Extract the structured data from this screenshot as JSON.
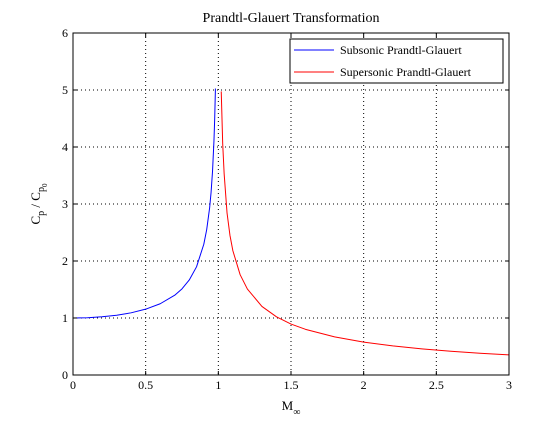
{
  "chart_data": {
    "type": "line",
    "title": "Prandtl-Glauert Transformation",
    "xlabel": {
      "base": "M",
      "sub": "∞"
    },
    "ylabel": {
      "c1": "C",
      "c1_sub": "p",
      "slash": " / C",
      "c2_sub": "p",
      "c2_subsub": "0"
    },
    "xlim": [
      0,
      3
    ],
    "ylim": [
      0,
      6
    ],
    "xticks": [
      0,
      0.5,
      1,
      1.5,
      2,
      2.5,
      3
    ],
    "xtick_labels": [
      "0",
      "0.5",
      "1",
      "1.5",
      "2",
      "2.5",
      "3"
    ],
    "yticks": [
      0,
      1,
      2,
      3,
      4,
      5,
      6
    ],
    "ytick_labels": [
      "0",
      "1",
      "2",
      "3",
      "4",
      "5",
      "6"
    ],
    "grid": true,
    "legend_position": "top-right",
    "series": [
      {
        "name": "Subsonic Prandtl-Glauert",
        "color": "#0000ff",
        "x": [
          0,
          0.1,
          0.2,
          0.3,
          0.4,
          0.5,
          0.6,
          0.7,
          0.75,
          0.8,
          0.85,
          0.9,
          0.92,
          0.94,
          0.95,
          0.96,
          0.97,
          0.975,
          0.98
        ],
        "y": [
          1.0,
          1.005,
          1.021,
          1.048,
          1.091,
          1.155,
          1.25,
          1.4,
          1.512,
          1.667,
          1.898,
          2.294,
          2.552,
          2.931,
          3.203,
          3.571,
          4.113,
          4.5,
          5.025
        ]
      },
      {
        "name": "Supersonic Prandtl-Glauert",
        "color": "#ff0000",
        "x": [
          1.02,
          1.03,
          1.04,
          1.06,
          1.08,
          1.1,
          1.15,
          1.2,
          1.3,
          1.4,
          1.5,
          1.6,
          1.8,
          2.0,
          2.2,
          2.4,
          2.6,
          2.8,
          3.0
        ],
        "y": [
          4.975,
          4.06,
          3.53,
          2.84,
          2.45,
          2.18,
          1.76,
          1.508,
          1.203,
          1.021,
          0.894,
          0.801,
          0.668,
          0.577,
          0.51,
          0.458,
          0.417,
          0.382,
          0.354
        ]
      }
    ]
  }
}
